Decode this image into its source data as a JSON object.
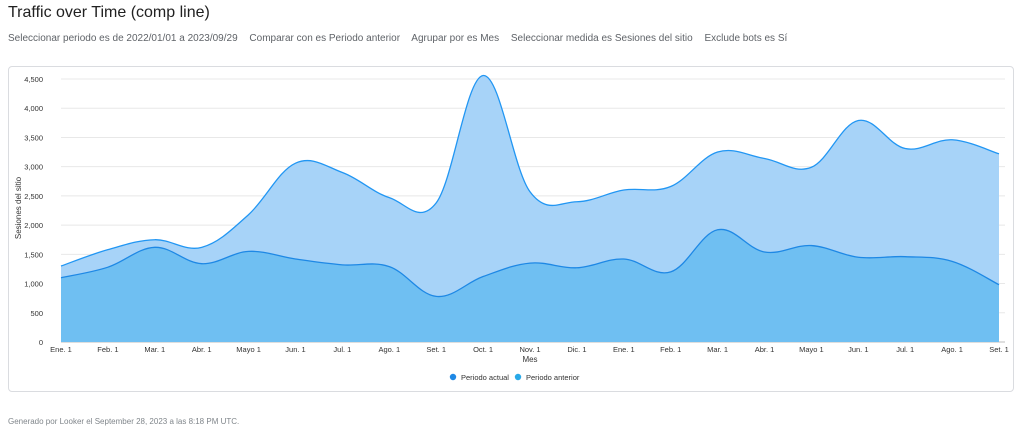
{
  "header": {
    "title": "Traffic over Time (comp line)"
  },
  "filters": [
    "Seleccionar periodo es de 2022/01/01 a 2023/09/29",
    "Comparar con es Periodo anterior",
    "Agrupar por es Mes",
    "Seleccionar medida es Sesiones del sitio",
    "Exclude bots es Sí"
  ],
  "footer": {
    "text": "Generado por Looker el September 28, 2023 a las 8:18 PM UTC."
  },
  "colors": {
    "actual_fill": "#6fbff2",
    "actual_line": "#1e88e5",
    "anterior_fill": "#a7d3f8",
    "anterior_line": "#2196f3",
    "grid": "#e8e8e8"
  },
  "chart_data": {
    "type": "area",
    "title": "",
    "xlabel": "Mes",
    "ylabel": "Sesiones del sitio",
    "ylim": [
      0,
      4500
    ],
    "yticks": [
      0,
      500,
      1000,
      1500,
      2000,
      2500,
      3000,
      3500,
      4000,
      4500
    ],
    "ytick_labels": [
      "0",
      "500",
      "1,000",
      "1,500",
      "2,000",
      "2,500",
      "3,000",
      "3,500",
      "4,000",
      "4,500"
    ],
    "categories": [
      "Ene. 1",
      "Feb. 1",
      "Mar. 1",
      "Abr. 1",
      "Mayo 1",
      "Jun. 1",
      "Jul. 1",
      "Ago. 1",
      "Set. 1",
      "Oct. 1",
      "Nov. 1",
      "Dic. 1",
      "Ene. 1",
      "Feb. 1",
      "Mar. 1",
      "Abr. 1",
      "Mayo 1",
      "Jun. 1",
      "Jul. 1",
      "Ago. 1",
      "Set. 1"
    ],
    "grid": true,
    "legend_position": "bottom-center",
    "series": [
      {
        "name": "Periodo actual",
        "values": [
          1100,
          1280,
          1620,
          1340,
          1550,
          1420,
          1320,
          1290,
          780,
          1120,
          1350,
          1270,
          1420,
          1200,
          1920,
          1540,
          1650,
          1450,
          1460,
          1380,
          980
        ]
      },
      {
        "name": "Periodo anterior",
        "values": [
          1300,
          1580,
          1750,
          1620,
          2180,
          3060,
          2900,
          2470,
          2380,
          4560,
          2570,
          2400,
          2600,
          2660,
          3250,
          3140,
          2990,
          3790,
          3310,
          3460,
          3220
        ]
      }
    ]
  }
}
